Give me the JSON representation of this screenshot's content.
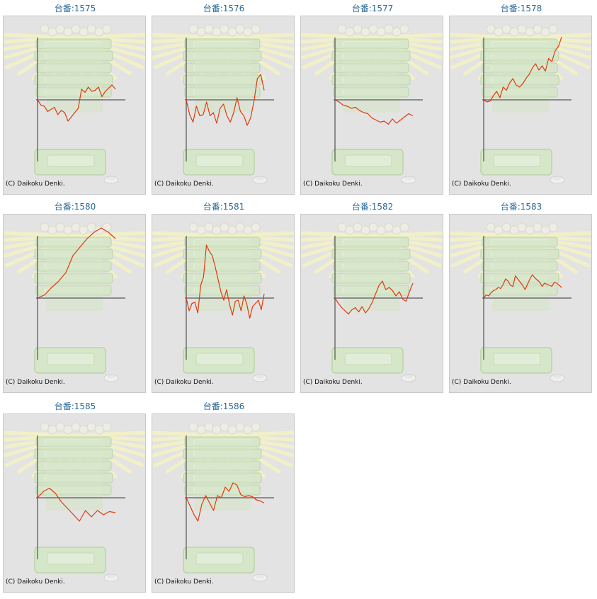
{
  "page": {
    "copyright": "(C) Daikoku Denki."
  },
  "colors": {
    "line": "#e03a0c",
    "axis": "#333333",
    "title": "#2a6a96",
    "panel_bg": "#e3e3e3"
  },
  "chart_data": [
    {
      "type": "line",
      "title": "台番:1575",
      "y": [
        0,
        -25,
        -30,
        -55,
        -45,
        -35,
        -70,
        -50,
        -60,
        -100,
        -80,
        -60,
        -40,
        50,
        35,
        60,
        40,
        45,
        60,
        15,
        40,
        55,
        70,
        50
      ]
    },
    {
      "type": "line",
      "title": "台番:1576",
      "y": [
        0,
        -70,
        -105,
        -30,
        -75,
        -70,
        -10,
        -75,
        -60,
        -110,
        -40,
        -20,
        -75,
        -105,
        -60,
        10,
        -55,
        -75,
        -120,
        -85,
        -5,
        100,
        120,
        45
      ]
    },
    {
      "type": "line",
      "title": "台番:1577",
      "y": [
        0,
        -10,
        -25,
        -30,
        -40,
        -35,
        -50,
        -60,
        -65,
        -85,
        -95,
        -105,
        -100,
        -115,
        -90,
        -110,
        -95,
        -80,
        -65,
        -75
      ]
    },
    {
      "type": "line",
      "title": "台番:1578",
      "y": [
        0,
        -10,
        -5,
        20,
        40,
        10,
        60,
        45,
        80,
        100,
        70,
        60,
        75,
        100,
        120,
        150,
        170,
        140,
        160,
        135,
        195,
        180,
        230,
        250,
        295
      ]
    },
    {
      "type": "line",
      "title": "台番:1580",
      "y": [
        0,
        15,
        50,
        80,
        120,
        200,
        240,
        280,
        310,
        330,
        310,
        280
      ]
    },
    {
      "type": "line",
      "title": "台番:1581",
      "y": [
        0,
        -60,
        -25,
        -20,
        -70,
        60,
        100,
        250,
        220,
        200,
        150,
        90,
        30,
        -10,
        40,
        -30,
        -80,
        -15,
        -10,
        -60,
        10,
        -30,
        -95,
        -40,
        -25,
        -10,
        -55,
        20
      ]
    },
    {
      "type": "line",
      "title": "台番:1582",
      "y": [
        0,
        -25,
        -45,
        -60,
        -75,
        -55,
        -45,
        -65,
        -40,
        -70,
        -50,
        -20,
        20,
        60,
        80,
        40,
        50,
        35,
        10,
        30,
        -5,
        -15,
        30,
        70
      ]
    },
    {
      "type": "line",
      "title": "台番:1583",
      "y": [
        0,
        15,
        10,
        25,
        35,
        40,
        50,
        45,
        65,
        90,
        80,
        60,
        55,
        105,
        90,
        75,
        60,
        40,
        65,
        90,
        110,
        95,
        85,
        75,
        55,
        70,
        65,
        60,
        55,
        75,
        70,
        60,
        50
      ]
    },
    {
      "type": "line",
      "title": "台番:1585",
      "y": [
        0,
        30,
        45,
        20,
        -20,
        -50,
        -80,
        -110,
        -60,
        -90,
        -60,
        -80,
        -65,
        -70
      ]
    },
    {
      "type": "line",
      "title": "台番:1586",
      "y": [
        0,
        -40,
        -80,
        -110,
        -30,
        10,
        -25,
        -60,
        10,
        0,
        50,
        30,
        70,
        60,
        15,
        5,
        10,
        5,
        -10,
        -15,
        -25
      ]
    }
  ]
}
